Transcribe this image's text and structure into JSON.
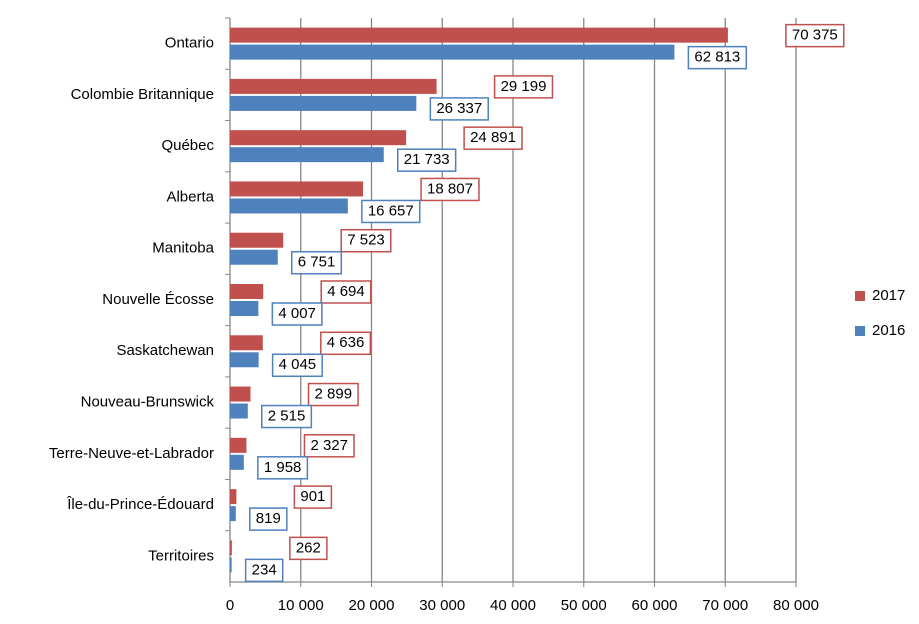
{
  "chart_data": {
    "type": "bar",
    "orientation": "horizontal",
    "categories": [
      "Ontario",
      "Colombie Britannique",
      "Québec",
      "Alberta",
      "Manitoba",
      "Nouvelle Écosse",
      "Saskatchewan",
      "Nouveau-Brunswick",
      "Terre-Neuve-et-Labrador",
      "Île-du-Prince-Édouard",
      "Territoires"
    ],
    "series": [
      {
        "name": "2017",
        "color": "#c0504d",
        "values": [
          70375,
          29199,
          24891,
          18807,
          7523,
          4694,
          4636,
          2899,
          2327,
          901,
          262
        ],
        "value_labels": [
          "70 375",
          "29 199",
          "24 891",
          "18 807",
          "7 523",
          "4 694",
          "4 636",
          "2 899",
          "2 327",
          "901",
          "262"
        ]
      },
      {
        "name": "2016",
        "color": "#4f81bd",
        "values": [
          62813,
          26337,
          21733,
          16657,
          6751,
          4007,
          4045,
          2515,
          1958,
          819,
          234
        ],
        "value_labels": [
          "62 813",
          "26 337",
          "21 733",
          "16 657",
          "6 751",
          "4 007",
          "4 045",
          "2 515",
          "1 958",
          "819",
          "234"
        ]
      }
    ],
    "xlim": [
      0,
      80000
    ],
    "xticks": [
      0,
      {
        "value": 10000,
        "label": "10 000"
      },
      {
        "value": 20000,
        "label": "20 000"
      },
      {
        "value": 30000,
        "label": "30 000"
      },
      {
        "value": 40000,
        "label": "40 000"
      },
      {
        "value": 50000,
        "label": "50 000"
      },
      {
        "value": 60000,
        "label": "60 000"
      },
      {
        "value": 70000,
        "label": "70 000"
      },
      {
        "value": 80000,
        "label": "80 000"
      }
    ],
    "grid": true,
    "legend": "right"
  }
}
